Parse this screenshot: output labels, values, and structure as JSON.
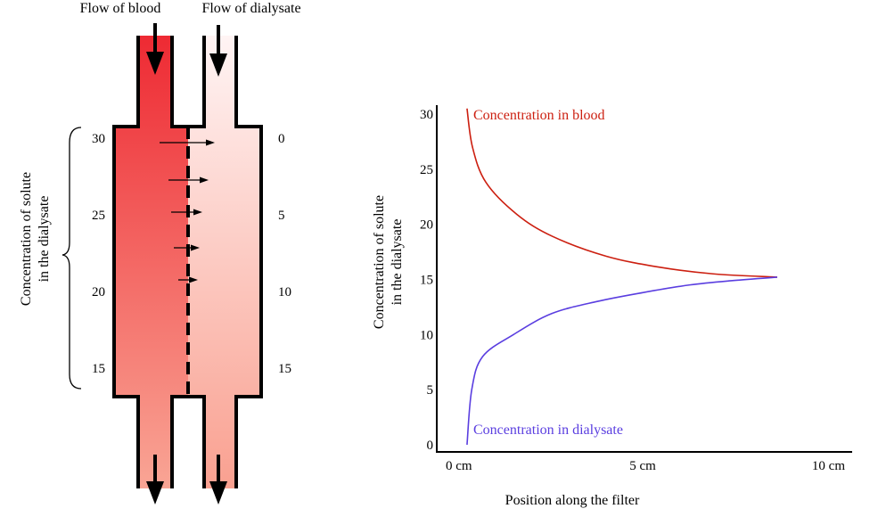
{
  "diagram": {
    "flow_blood_label": "Flow of blood",
    "flow_dialysate_label": "Flow of dialysate",
    "side_label_line1": "Concentration of solute",
    "side_label_line2": "in the dialysate",
    "blood_levels": [
      "30",
      "25",
      "20",
      "15"
    ],
    "dialysate_levels": [
      "0",
      "5",
      "10",
      "15"
    ],
    "colors": {
      "blood_top": "#ee2a33",
      "blood_bottom": "#f9a595",
      "dialysate_top": "#fff4f4",
      "dialysate_bottom": "#f9a090"
    }
  },
  "chart_data": {
    "type": "line",
    "title": "",
    "xlabel": "Position along the filter",
    "ylabel_line1": "Concentration of solute",
    "ylabel_line2": "in the dialysate",
    "xlim": [
      0,
      10
    ],
    "ylim": [
      0,
      30
    ],
    "x_ticks": [
      {
        "value": 0,
        "label": "0 cm"
      },
      {
        "value": 5,
        "label": "5 cm"
      },
      {
        "value": 10,
        "label": "10 cm"
      }
    ],
    "y_ticks": [
      "0",
      "5",
      "10",
      "15",
      "20",
      "25",
      "30"
    ],
    "grid": false,
    "series": [
      {
        "name": "Concentration in blood",
        "color": "#cc1f10",
        "points": [
          [
            0.17,
            30.5
          ],
          [
            0.32,
            27.0
          ],
          [
            0.69,
            23.8
          ],
          [
            1.54,
            20.9
          ],
          [
            2.52,
            18.9
          ],
          [
            4.0,
            17.1
          ],
          [
            5.47,
            16.1
          ],
          [
            6.94,
            15.5
          ],
          [
            8.7,
            15.2
          ]
        ]
      },
      {
        "name": "Concentration in dialysate",
        "color": "#5a3ee0",
        "points": [
          [
            0.17,
            0
          ],
          [
            0.3,
            5
          ],
          [
            0.6,
            8
          ],
          [
            1.45,
            10
          ],
          [
            2.5,
            11.9
          ],
          [
            3.75,
            13
          ],
          [
            5,
            13.8
          ],
          [
            6.3,
            14.5
          ],
          [
            7.5,
            14.9
          ],
          [
            8.7,
            15.2
          ]
        ]
      }
    ]
  }
}
